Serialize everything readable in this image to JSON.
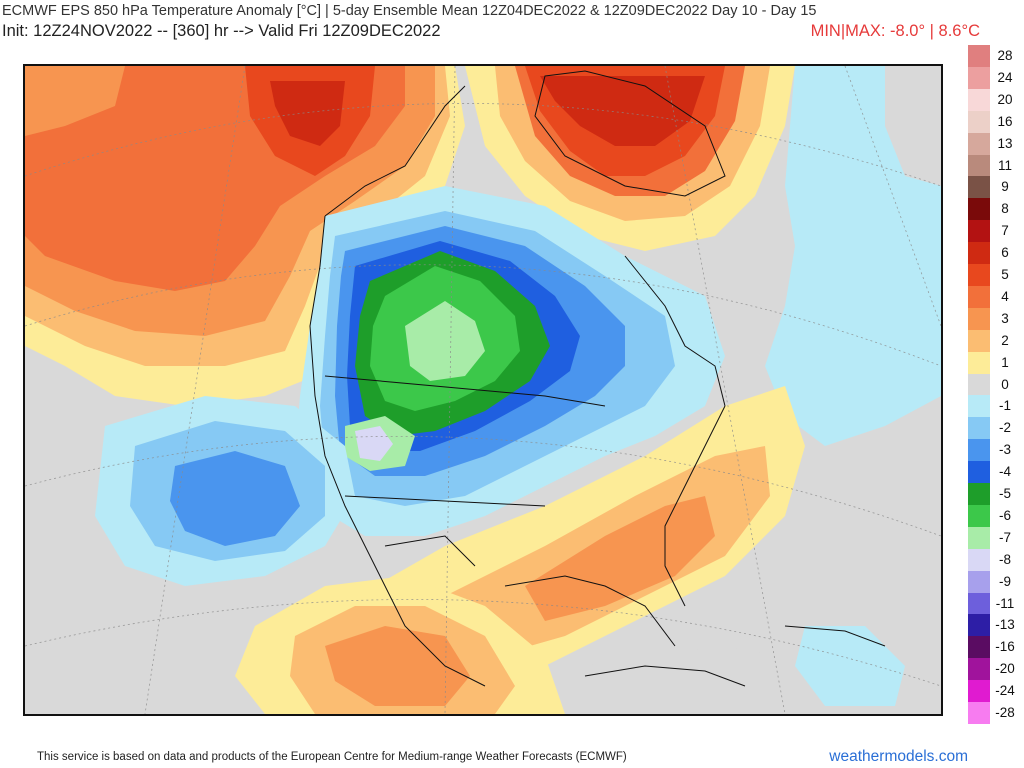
{
  "header": {
    "title": "ECMWF EPS 850 hPa Temperature Anomaly [°C] | 5-day Ensemble Mean 12Z04DEC2022 & 12Z09DEC2022   Day 10 - Day 15",
    "subtitle": "Init: 12Z24NOV2022 -- [360] hr --> Valid Fri 12Z09DEC2022",
    "minmax": "MIN|MAX: -8.0° | 8.6°C"
  },
  "colorbar": {
    "levels": [
      {
        "label": "28",
        "color": "#e07f7f"
      },
      {
        "label": "24",
        "color": "#ec9f9f"
      },
      {
        "label": "20",
        "color": "#f8d8d8"
      },
      {
        "label": "16",
        "color": "#ecd0c8"
      },
      {
        "label": "13",
        "color": "#d6a89c"
      },
      {
        "label": "11",
        "color": "#b98a7c"
      },
      {
        "label": "9",
        "color": "#7a5246"
      },
      {
        "label": "8",
        "color": "#7a0a0a"
      },
      {
        "label": "7",
        "color": "#b31212"
      },
      {
        "label": "6",
        "color": "#cf2a12"
      },
      {
        "label": "5",
        "color": "#e8481e"
      },
      {
        "label": "4",
        "color": "#f2703a"
      },
      {
        "label": "3",
        "color": "#f79550"
      },
      {
        "label": "2",
        "color": "#fbbd72"
      },
      {
        "label": "1",
        "color": "#fdec98"
      },
      {
        "label": "0",
        "color": "#d9d9d9"
      },
      {
        "label": "-1",
        "color": "#b7eaf7"
      },
      {
        "label": "-2",
        "color": "#86c9f4"
      },
      {
        "label": "-3",
        "color": "#4a95ee"
      },
      {
        "label": "-4",
        "color": "#1f5fe0"
      },
      {
        "label": "-5",
        "color": "#1e9e2a"
      },
      {
        "label": "-6",
        "color": "#3cc84a"
      },
      {
        "label": "-7",
        "color": "#a8eca8"
      },
      {
        "label": "-8",
        "color": "#d9d8f5"
      },
      {
        "label": "-9",
        "color": "#a7a0ec"
      },
      {
        "label": "-11",
        "color": "#6d5fdc"
      },
      {
        "label": "-13",
        "color": "#2d1ea6"
      },
      {
        "label": "-16",
        "color": "#5a0c62"
      },
      {
        "label": "-20",
        "color": "#a0139c"
      },
      {
        "label": "-24",
        "color": "#e01bd0"
      },
      {
        "label": "-28",
        "color": "#f77cf0"
      }
    ]
  },
  "footer": {
    "attribution": "This service is based on data and products of the European Centre for Medium-range Weather Forecasts (ECMWF)",
    "site": "weathermodels.com"
  }
}
